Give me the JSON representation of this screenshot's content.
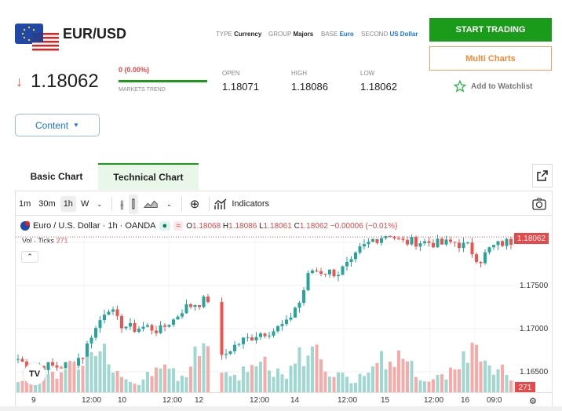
{
  "header": {
    "symbol": "EUR/USD",
    "type_label": "TYPE",
    "type": "Currency",
    "group_label": "GROUP",
    "group": "Majors",
    "base_label": "BASE",
    "base": "Euro",
    "second_label": "SECOND",
    "second": "US Dollar"
  },
  "actions": {
    "start_trading": "START TRADING",
    "multi_charts": "Multi Charts",
    "watchlist": "Add to Watchlist"
  },
  "quote": {
    "price": "1.18062",
    "change": "0 (0.00%)",
    "trend_label": "MARKETS TREND",
    "open_label": "OPEN",
    "open": "1.18071",
    "high_label": "HIGH",
    "high": "1.18086",
    "low_label": "LOW",
    "low": "1.18062"
  },
  "content_button": "Content",
  "tabs": [
    {
      "label": "Basic Chart"
    },
    {
      "label": "Technical Chart",
      "active": true
    }
  ],
  "toolbar": {
    "intervals": [
      "1m",
      "30m",
      "1h",
      "W"
    ],
    "selected_interval": "1h",
    "indicators": "Indicators"
  },
  "legend": {
    "title": "Euro / U.S. Dollar · 1h · OANDA",
    "o_label": "O",
    "o": "1.18068",
    "h_label": "H",
    "h": "1.18086",
    "l_label": "L",
    "l": "1.18061",
    "c_label": "C",
    "c": "1.18062",
    "change": "−0.00006 (−0.01%)",
    "vol_label": "Vol · Ticks",
    "vol": "271"
  },
  "colors": {
    "up": "#26a69a",
    "down": "#ef5350",
    "accent": "#1a9c1a"
  },
  "chart_data": {
    "type": "candlestick",
    "price_axis": [
      "1.18000",
      "1.17500",
      "1.17000",
      "1.16500"
    ],
    "last_price": "1.18062",
    "last_volume": "271",
    "x_ticks": [
      "9",
      "12:00",
      "10",
      "12:00",
      "12",
      "12:00",
      "14",
      "12:00",
      "15",
      "12:00",
      "16",
      "09:0"
    ],
    "closes": [
      1.1665,
      1.1655,
      1.1657,
      1.1656,
      1.1658,
      1.1668,
      1.17,
      1.1725,
      1.1705,
      1.17,
      1.1702,
      1.1698,
      1.171,
      1.1725,
      1.173,
      1.1735,
      null,
      1.1665,
      1.168,
      1.1688,
      1.1695,
      1.1698,
      1.1705,
      1.173,
      1.1768,
      1.1766,
      1.1765,
      1.1775,
      1.1795,
      1.1805,
      1.181,
      1.18,
      1.1801,
      1.18,
      1.1798,
      1.18,
      1.1795,
      1.178,
      1.1795,
      1.18,
      1.1803,
      1.1806
    ],
    "volume_profile": [
      25,
      20,
      35,
      30,
      55,
      45,
      60,
      75,
      40,
      25,
      20,
      35,
      50,
      45,
      30,
      70,
      80,
      40,
      25,
      45,
      55,
      40,
      35,
      60,
      70,
      85,
      40,
      30,
      25,
      40,
      55,
      60,
      65,
      50,
      30,
      25,
      35,
      45,
      60,
      75,
      55,
      40,
      30,
      20,
      10
    ]
  }
}
